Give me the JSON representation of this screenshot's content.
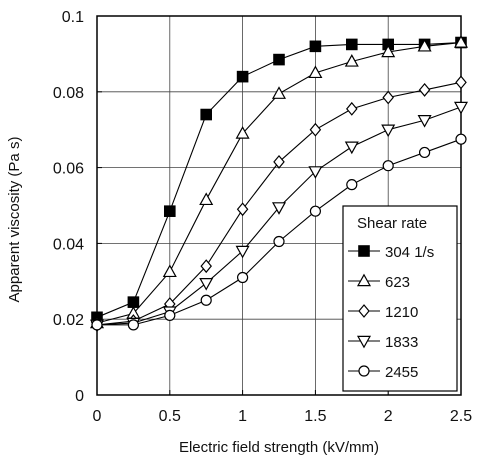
{
  "chart_data": {
    "type": "line",
    "xlabel": "Electric field strength (kV/mm)",
    "ylabel": "Apparent viscosity  (Pa s)",
    "xlim": [
      0,
      2.5
    ],
    "ylim": [
      0,
      0.1
    ],
    "xticks": [
      0,
      0.5,
      1,
      1.5,
      2,
      2.5
    ],
    "xtick_labels": [
      "0",
      "0.5",
      "1",
      "1.5",
      "2",
      "2.5"
    ],
    "yticks": [
      0,
      0.02,
      0.04,
      0.06,
      0.08,
      0.1
    ],
    "ytick_labels": [
      "0",
      "0.02",
      "0.04",
      "0.06",
      "0.08",
      "0.1"
    ],
    "grid": true,
    "legend_title": "Shear rate",
    "legend_position": "lower-right",
    "x": [
      0,
      0.25,
      0.5,
      0.75,
      1,
      1.25,
      1.5,
      1.75,
      2,
      2.25,
      2.5
    ],
    "series": [
      {
        "name": "304  1/s",
        "marker": "square-filled",
        "values": [
          0.0205,
          0.0245,
          0.0485,
          0.074,
          0.084,
          0.0885,
          0.092,
          0.0925,
          0.0925,
          0.0925,
          0.093
        ]
      },
      {
        "name": "623",
        "marker": "triangle-up",
        "values": [
          0.019,
          0.0215,
          0.0325,
          0.0515,
          0.069,
          0.0795,
          0.085,
          0.088,
          0.0905,
          0.092,
          0.093
        ]
      },
      {
        "name": "1210",
        "marker": "diamond",
        "values": [
          0.0185,
          0.0195,
          0.024,
          0.034,
          0.049,
          0.0615,
          0.07,
          0.0755,
          0.0785,
          0.0805,
          0.0825
        ]
      },
      {
        "name": "1833",
        "marker": "triangle-down",
        "values": [
          0.0185,
          0.019,
          0.022,
          0.0295,
          0.038,
          0.0495,
          0.059,
          0.0655,
          0.07,
          0.0725,
          0.076
        ]
      },
      {
        "name": "2455",
        "marker": "circle",
        "values": [
          0.0185,
          0.0185,
          0.021,
          0.025,
          0.031,
          0.0405,
          0.0485,
          0.0555,
          0.0605,
          0.064,
          0.0675
        ]
      }
    ]
  }
}
